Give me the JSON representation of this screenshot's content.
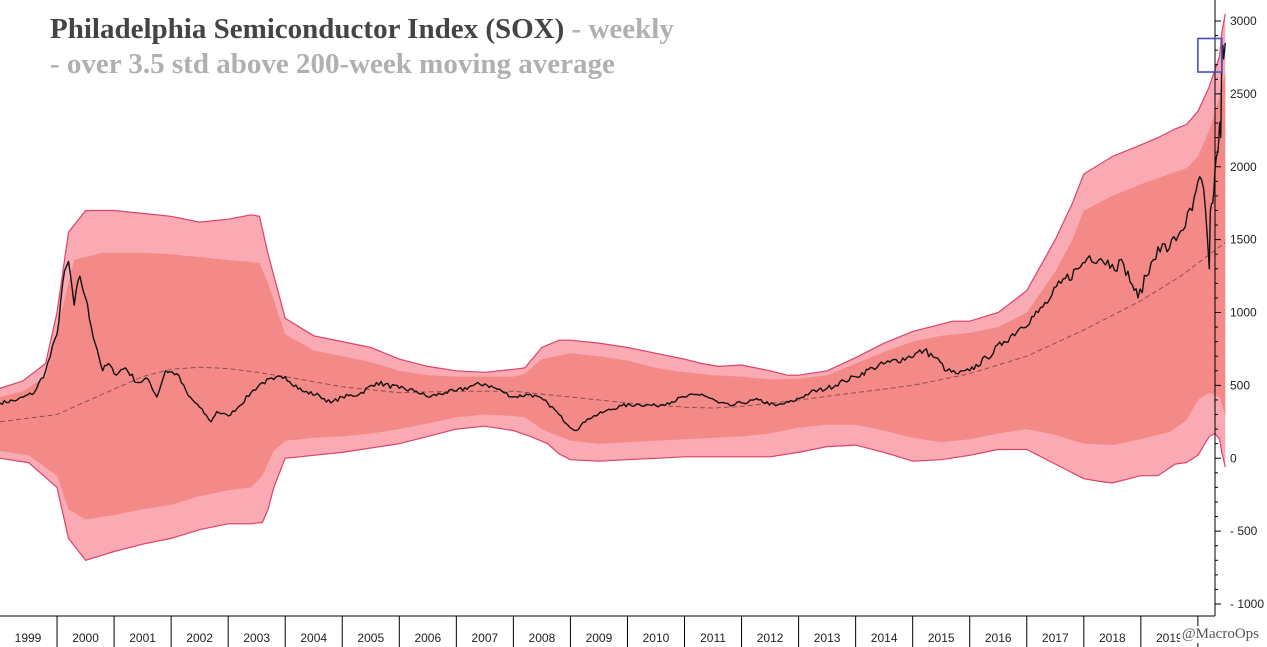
{
  "chart_data": {
    "type": "line",
    "title": "Philadelphia Semiconductor Index (SOX)",
    "title_suffix": "- weekly",
    "subtitle": "- over 3.5 std above 200-week moving average",
    "credit": "@MacroOps",
    "xlabel": "",
    "ylabel": "",
    "ylim": [
      -1000,
      3000
    ],
    "xlim": [
      1999.0,
      2020.3
    ],
    "y_ticks": [
      3000,
      2500,
      2000,
      1500,
      1000,
      500,
      0,
      -500,
      -1000
    ],
    "x_ticks": [
      "1999",
      "2000",
      "2001",
      "2002",
      "2003",
      "2004",
      "2005",
      "2006",
      "2007",
      "2008",
      "2009",
      "2010",
      "2011",
      "2012",
      "2013",
      "2014",
      "2015",
      "2016",
      "2017",
      "2018",
      "2019",
      "20"
    ],
    "grid": false,
    "y_axis_position": "right",
    "colors": {
      "outer_band": "#f9aab2",
      "inner_band": "#f48a87",
      "band_edge": "#d9436b",
      "price": "#111111",
      "moving_average": "#8a5050",
      "highlight_box": "#4a4fc0"
    },
    "highlight_box": {
      "x": [
        2020.0,
        2020.42
      ],
      "y": [
        2650,
        2880
      ]
    },
    "series": [
      {
        "key": "price",
        "x": [
          1999.0,
          1999.3,
          1999.6,
          1999.8,
          2000.0,
          2000.1,
          2000.2,
          2000.3,
          2000.4,
          2000.5,
          2000.6,
          2000.7,
          2000.8,
          2000.9,
          2001.0,
          2001.2,
          2001.4,
          2001.6,
          2001.75,
          2001.9,
          2002.1,
          2002.3,
          2002.5,
          2002.7,
          2002.8,
          2003.0,
          2003.2,
          2003.4,
          2003.6,
          2003.8,
          2004.0,
          2004.3,
          2004.6,
          2004.8,
          2005.0,
          2005.3,
          2005.6,
          2006.0,
          2006.3,
          2006.5,
          2006.8,
          2007.0,
          2007.3,
          2007.5,
          2007.8,
          2008.0,
          2008.3,
          2008.6,
          2008.8,
          2008.95,
          2009.1,
          2009.3,
          2009.6,
          2009.9,
          2010.2,
          2010.5,
          2010.7,
          2011.0,
          2011.3,
          2011.6,
          2011.8,
          2012.0,
          2012.3,
          2012.6,
          2012.9,
          2013.2,
          2013.5,
          2013.8,
          2014.0,
          2014.3,
          2014.6,
          2014.9,
          2015.2,
          2015.4,
          2015.6,
          2015.8,
          2016.0,
          2016.3,
          2016.6,
          2016.9,
          2017.2,
          2017.4,
          2017.6,
          2017.9,
          2018.1,
          2018.3,
          2018.5,
          2018.7,
          2018.85,
          2018.95,
          2019.1,
          2019.3,
          2019.5,
          2019.7,
          2019.9,
          2020.0,
          2020.1,
          2020.2,
          2020.22,
          2020.26,
          2020.3,
          2020.35
        ],
        "y": [
          380,
          400,
          450,
          600,
          850,
          1200,
          1350,
          1050,
          1250,
          1100,
          900,
          750,
          600,
          650,
          580,
          620,
          520,
          540,
          420,
          600,
          580,
          430,
          350,
          250,
          320,
          290,
          360,
          450,
          520,
          540,
          560,
          460,
          430,
          380,
          420,
          440,
          520,
          480,
          460,
          420,
          450,
          460,
          500,
          510,
          460,
          420,
          440,
          380,
          300,
          230,
          190,
          270,
          320,
          360,
          370,
          360,
          380,
          420,
          440,
          380,
          360,
          380,
          400,
          360,
          390,
          450,
          480,
          530,
          560,
          620,
          660,
          690,
          740,
          690,
          600,
          580,
          600,
          690,
          800,
          900,
          1000,
          1090,
          1200,
          1300,
          1390,
          1370,
          1330,
          1330,
          1190,
          1100,
          1250,
          1450,
          1440,
          1560,
          1700,
          1900,
          1850,
          1300,
          1700,
          1750,
          1980,
          2100
        ]
      },
      {
        "key": "price_tail",
        "x": [
          2020.35,
          2020.38,
          2020.4,
          2020.41,
          2020.42,
          2020.43,
          2020.45,
          2020.48
        ],
        "y": [
          2100,
          2300,
          2200,
          2500,
          2650,
          2800,
          2740,
          2850
        ]
      },
      {
        "key": "moving_average",
        "x": [
          1999.0,
          2000.0,
          2000.8,
          2001.5,
          2002.0,
          2002.5,
          2003.0,
          2003.5,
          2004.0,
          2005.0,
          2006.0,
          2007.0,
          2008.0,
          2009.0,
          2010.0,
          2011.0,
          2011.5,
          2012.0,
          2013.0,
          2014.0,
          2015.0,
          2016.0,
          2017.0,
          2018.0,
          2019.0,
          2019.7,
          2020.48
        ],
        "y": [
          250,
          300,
          440,
          560,
          610,
          625,
          615,
          590,
          560,
          490,
          450,
          460,
          460,
          420,
          380,
          350,
          345,
          355,
          400,
          450,
          500,
          580,
          700,
          880,
          1080,
          1250,
          1480
        ]
      },
      {
        "key": "outer_band_upper",
        "x": [
          1999.0,
          1999.4,
          1999.8,
          2000.0,
          2000.2,
          2000.5,
          2001.0,
          2001.5,
          2002.0,
          2002.5,
          2003.0,
          2003.4,
          2003.55,
          2003.7,
          2004.0,
          2004.5,
          2005.0,
          2005.5,
          2006.0,
          2006.5,
          2007.0,
          2007.5,
          2008.0,
          2008.2,
          2008.5,
          2008.8,
          2009.0,
          2009.5,
          2010.0,
          2010.5,
          2011.0,
          2011.3,
          2011.6,
          2012.0,
          2012.5,
          2012.8,
          2013.0,
          2013.5,
          2014.0,
          2014.5,
          2015.0,
          2015.3,
          2015.7,
          2016.0,
          2016.5,
          2017.0,
          2017.5,
          2017.8,
          2018.0,
          2018.5,
          2019.0,
          2019.3,
          2019.6,
          2019.8,
          2020.0,
          2020.2,
          2020.38,
          2020.42,
          2020.48
        ],
        "y": [
          480,
          530,
          650,
          1000,
          1550,
          1700,
          1700,
          1680,
          1660,
          1620,
          1640,
          1670,
          1660,
          1400,
          960,
          840,
          800,
          760,
          680,
          630,
          600,
          590,
          610,
          620,
          760,
          810,
          810,
          790,
          760,
          720,
          680,
          650,
          630,
          640,
          600,
          570,
          570,
          600,
          690,
          790,
          870,
          900,
          940,
          940,
          1000,
          1150,
          1500,
          1750,
          1950,
          2070,
          2150,
          2200,
          2260,
          2290,
          2380,
          2550,
          2760,
          2920,
          3050
        ]
      },
      {
        "key": "inner_band_upper",
        "x": [
          1999.0,
          1999.4,
          1999.8,
          2000.0,
          2000.3,
          2000.8,
          2001.5,
          2002.0,
          2002.5,
          2003.0,
          2003.3,
          2003.55,
          2003.7,
          2004.0,
          2004.5,
          2005.0,
          2005.5,
          2006.0,
          2006.5,
          2007.0,
          2007.5,
          2008.0,
          2008.2,
          2008.5,
          2009.0,
          2009.5,
          2010.0,
          2010.5,
          2011.0,
          2011.5,
          2012.0,
          2012.5,
          2013.0,
          2013.5,
          2014.0,
          2014.5,
          2015.0,
          2015.5,
          2016.0,
          2016.5,
          2017.0,
          2017.5,
          2017.8,
          2018.0,
          2018.5,
          2019.0,
          2019.5,
          2019.8,
          2020.0,
          2020.2,
          2020.38,
          2020.48
        ],
        "y": [
          420,
          460,
          560,
          880,
          1360,
          1410,
          1410,
          1400,
          1380,
          1360,
          1350,
          1340,
          1200,
          850,
          740,
          700,
          660,
          600,
          570,
          560,
          560,
          560,
          580,
          680,
          720,
          700,
          670,
          620,
          590,
          570,
          560,
          540,
          545,
          570,
          650,
          730,
          800,
          840,
          860,
          900,
          1000,
          1280,
          1500,
          1700,
          1800,
          1880,
          1950,
          1990,
          2070,
          2250,
          2480,
          2650
        ]
      },
      {
        "key": "inner_band_lower",
        "x": [
          1999.0,
          1999.5,
          2000.0,
          2000.2,
          2000.5,
          2001.0,
          2001.5,
          2002.0,
          2002.5,
          2003.0,
          2003.4,
          2003.6,
          2003.8,
          2004.0,
          2004.5,
          2005.0,
          2005.5,
          2006.0,
          2006.5,
          2007.0,
          2007.5,
          2008.0,
          2008.2,
          2008.5,
          2009.0,
          2009.5,
          2010.0,
          2010.5,
          2011.0,
          2011.5,
          2012.0,
          2012.5,
          2013.0,
          2013.5,
          2014.0,
          2014.5,
          2015.0,
          2015.5,
          2016.0,
          2016.5,
          2017.0,
          2017.5,
          2018.0,
          2018.5,
          2019.0,
          2019.5,
          2019.8,
          2020.0,
          2020.2,
          2020.38,
          2020.48
        ],
        "y": [
          50,
          20,
          -120,
          -350,
          -420,
          -390,
          -350,
          -320,
          -260,
          -220,
          -200,
          -120,
          50,
          120,
          140,
          150,
          170,
          200,
          240,
          280,
          300,
          290,
          280,
          200,
          120,
          100,
          110,
          120,
          130,
          140,
          150,
          170,
          210,
          230,
          230,
          190,
          140,
          110,
          130,
          170,
          200,
          160,
          100,
          90,
          130,
          180,
          260,
          400,
          450,
          420,
          290
        ]
      },
      {
        "key": "outer_band_lower",
        "x": [
          1999.0,
          1999.5,
          2000.0,
          2000.2,
          2000.5,
          2001.0,
          2001.5,
          2002.0,
          2002.5,
          2003.0,
          2003.4,
          2003.6,
          2003.7,
          2003.8,
          2004.0,
          2004.5,
          2005.0,
          2005.5,
          2006.0,
          2006.5,
          2007.0,
          2007.5,
          2008.0,
          2008.3,
          2008.6,
          2008.8,
          2009.0,
          2009.5,
          2010.0,
          2010.5,
          2011.0,
          2011.5,
          2012.0,
          2012.5,
          2013.0,
          2013.5,
          2014.0,
          2014.5,
          2015.0,
          2015.5,
          2016.0,
          2016.5,
          2017.0,
          2017.5,
          2018.0,
          2018.3,
          2018.5,
          2019.0,
          2019.3,
          2019.6,
          2019.8,
          2020.0,
          2020.2,
          2020.3,
          2020.38,
          2020.42,
          2020.48
        ],
        "y": [
          0,
          -30,
          -200,
          -550,
          -700,
          -640,
          -590,
          -550,
          -490,
          -450,
          -450,
          -440,
          -350,
          -200,
          0,
          20,
          40,
          70,
          100,
          150,
          200,
          220,
          190,
          150,
          100,
          30,
          -10,
          -20,
          -10,
          0,
          10,
          10,
          10,
          10,
          40,
          80,
          90,
          40,
          -20,
          -10,
          20,
          60,
          60,
          -40,
          -140,
          -160,
          -170,
          -120,
          -120,
          -40,
          -30,
          20,
          150,
          170,
          130,
          40,
          -60
        ]
      }
    ]
  }
}
